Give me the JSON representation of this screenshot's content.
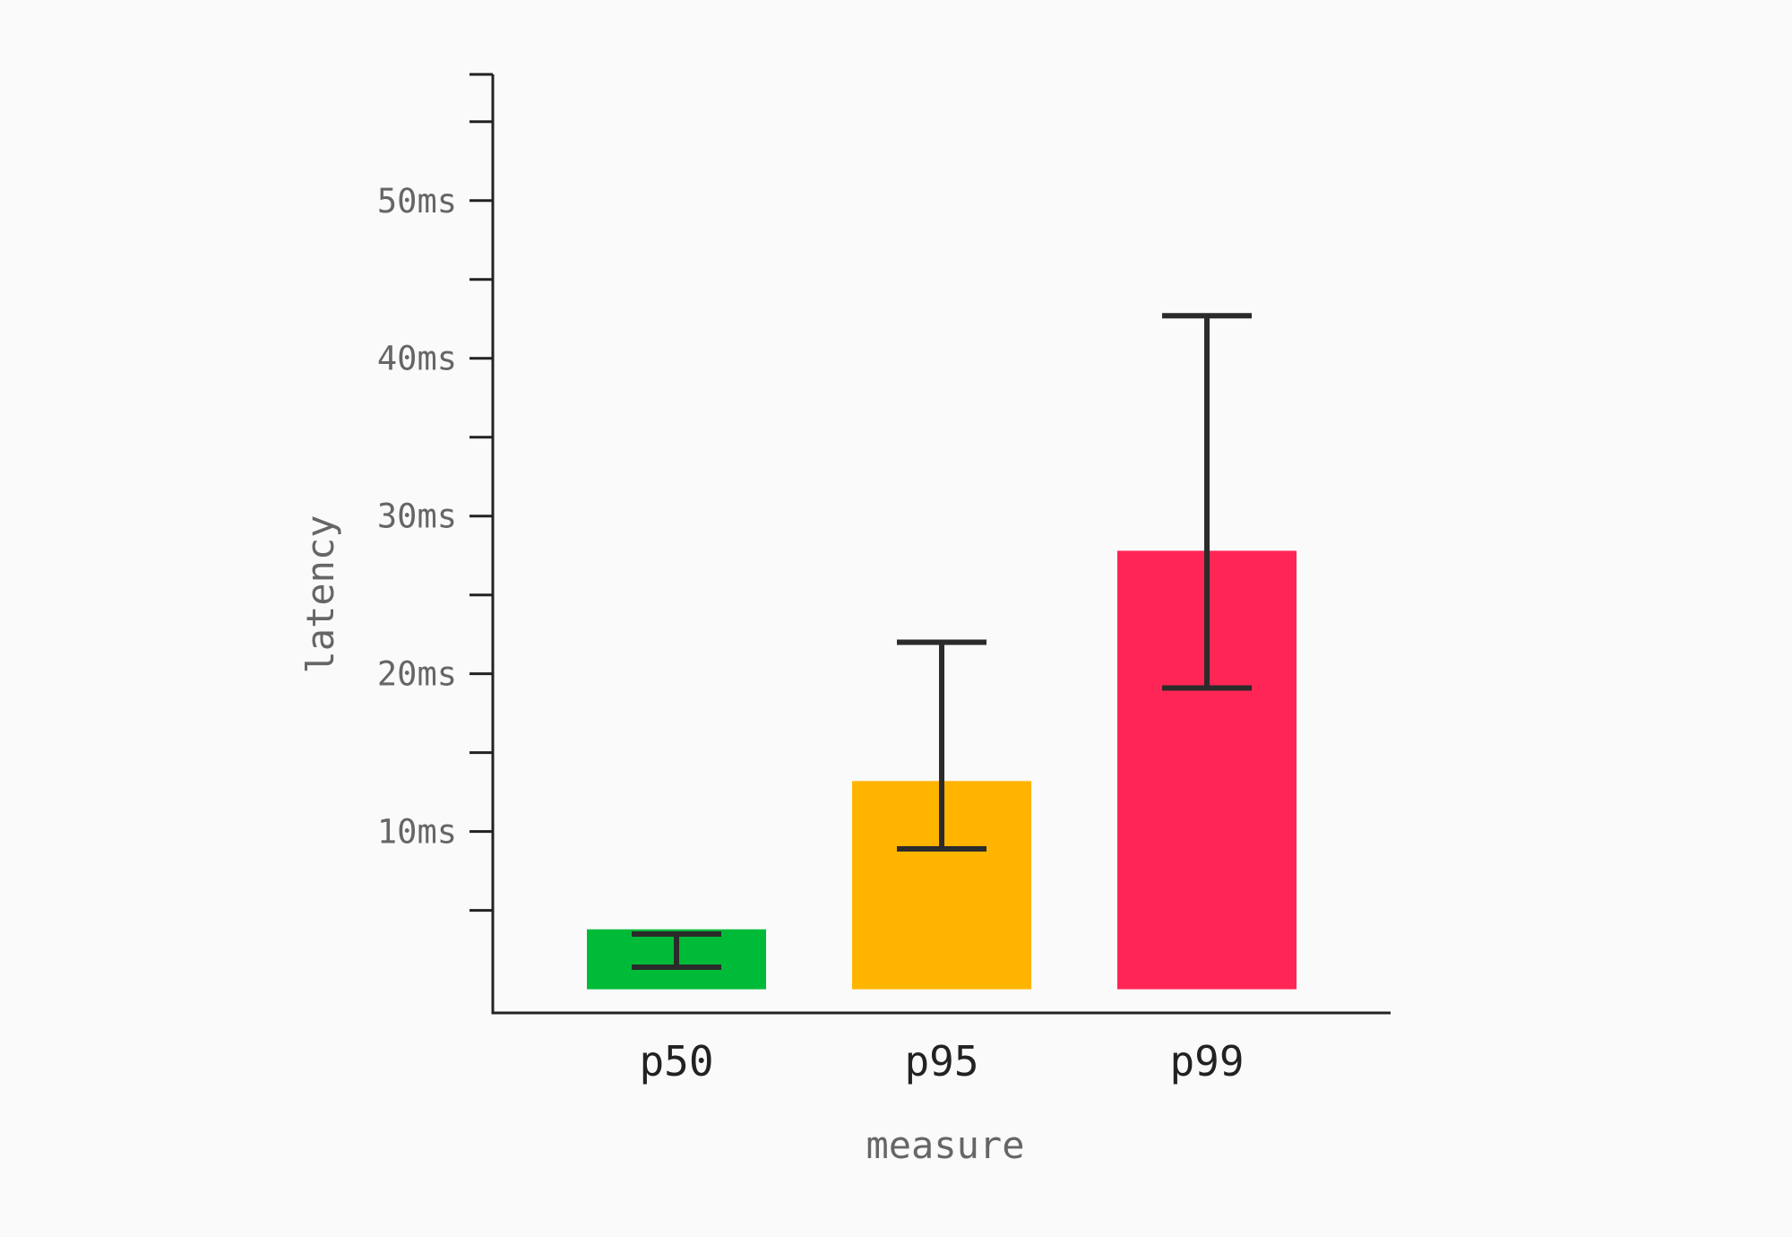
{
  "chart_data": {
    "type": "bar",
    "title": "",
    "xlabel": "measure",
    "ylabel": "latency",
    "categories": [
      "p50",
      "p95",
      "p99"
    ],
    "values": [
      3.8,
      13.2,
      27.8
    ],
    "error_low": [
      1.4,
      8.9,
      19.1
    ],
    "error_high": [
      3.5,
      22.0,
      42.7
    ],
    "colors": [
      "#00bb38",
      "#ffb400",
      "#ff2655"
    ],
    "error_bar_color": "#2b2b2b",
    "axis_color": "#222222",
    "ylim": [
      -1.5,
      58
    ],
    "yticks": [
      10,
      20,
      30,
      40,
      50
    ],
    "ytick_labels": [
      "10ms",
      "20ms",
      "30ms",
      "40ms",
      "50ms"
    ],
    "minor_yticks": [
      5,
      15,
      25,
      35,
      45,
      55
    ],
    "grid": false,
    "legend": "none"
  }
}
